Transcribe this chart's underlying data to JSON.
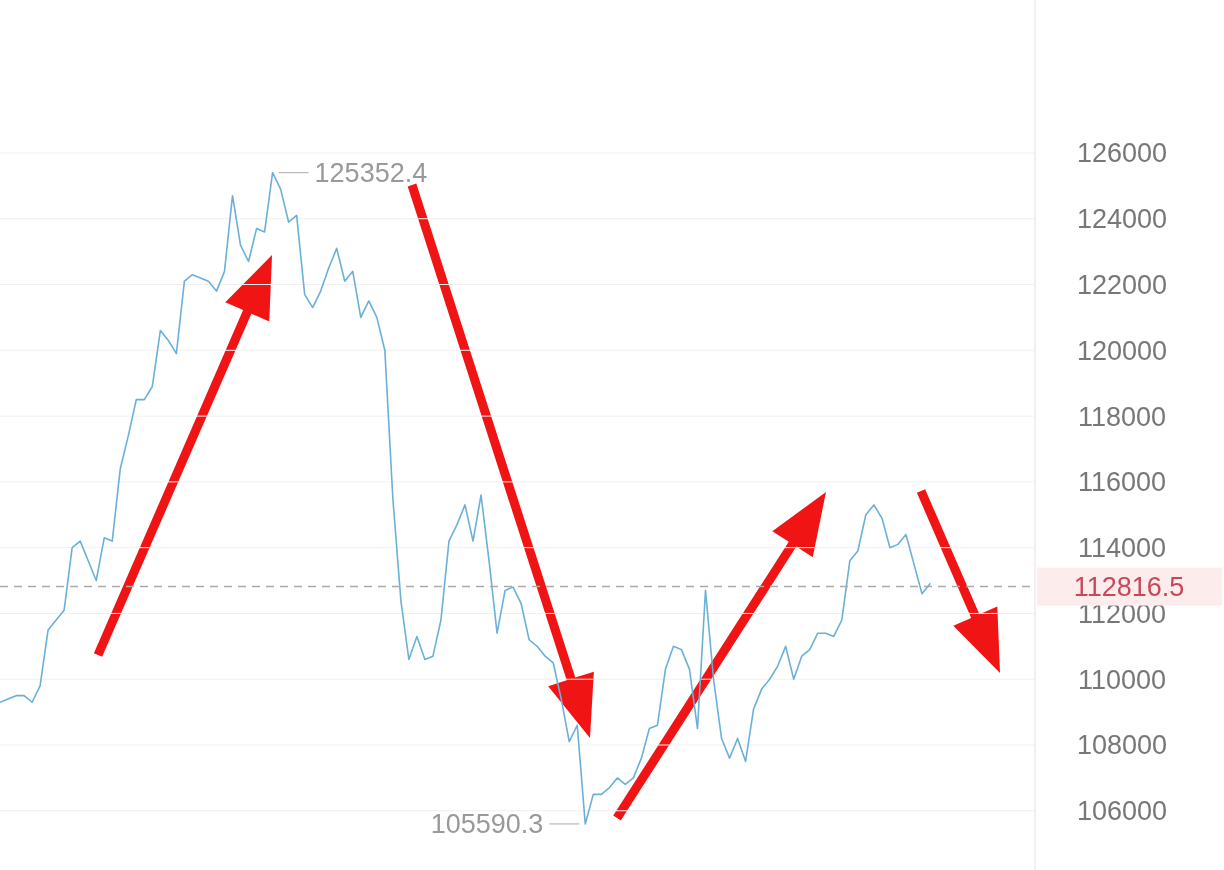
{
  "chart_data": {
    "type": "line",
    "categories": [
      null,
      null,
      null,
      null,
      null,
      null,
      null,
      null,
      null,
      null,
      null,
      null,
      null,
      null,
      null,
      null,
      null,
      null,
      null,
      null,
      null,
      null,
      null,
      null,
      null,
      null,
      null,
      null,
      null,
      null,
      null,
      null,
      null,
      null,
      null,
      null,
      null,
      null,
      null,
      null,
      null,
      null,
      null,
      null,
      null,
      null,
      null,
      null,
      null,
      null,
      null,
      null,
      null,
      null,
      null,
      null,
      null,
      null,
      null,
      null,
      null,
      null,
      null,
      null,
      null,
      null,
      null,
      null,
      null,
      null,
      null,
      null,
      null,
      null,
      null,
      null,
      null,
      null,
      null,
      null,
      null,
      null,
      null,
      null,
      null,
      null,
      null,
      null,
      null,
      null,
      null,
      null,
      null,
      null,
      null,
      null,
      null,
      null,
      null,
      null,
      null,
      null,
      null,
      null,
      null,
      null,
      null,
      null,
      null,
      null,
      null,
      null,
      null,
      null,
      null,
      null,
      null
    ],
    "series": [
      {
        "color": "#6ab0d8",
        "values": [
          109300,
          109400,
          109500,
          109500,
          109300,
          109800,
          111500,
          111800,
          112100,
          114000,
          114200,
          113600,
          113000,
          114300,
          114200,
          116400,
          117400,
          118500,
          118500,
          118900,
          120600,
          120300,
          119900,
          122100,
          122300,
          122200,
          122100,
          121800,
          122400,
          124700,
          123200,
          122700,
          123700,
          123600,
          125400,
          124900,
          123900,
          124100,
          121700,
          121300,
          121800,
          122500,
          123100,
          122100,
          122400,
          121000,
          121500,
          121000,
          120000,
          115500,
          112400,
          110600,
          111300,
          110600,
          110700,
          111800,
          114200,
          114700,
          115300,
          114200,
          115600,
          113600,
          111400,
          112700,
          112800,
          112300,
          111200,
          111000,
          110700,
          110500,
          109400,
          108100,
          108600,
          105600,
          106500,
          106500,
          106700,
          107000,
          106800,
          107000,
          107600,
          108500,
          108600,
          110300,
          111000,
          110900,
          110300,
          108500,
          112700,
          110000,
          108200,
          107600,
          108200,
          107500,
          109100,
          109700,
          110000,
          110400,
          111000,
          110000,
          110700,
          110900,
          111400,
          111400,
          111300,
          111800,
          113600,
          113900,
          115000,
          115300,
          114900,
          114000,
          114100,
          114400,
          113500,
          112600,
          112900
        ]
      }
    ],
    "ylim": [
      104200,
      130650
    ],
    "yticks": [
      106000,
      108000,
      110000,
      112000,
      114000,
      116000,
      118000,
      120000,
      122000,
      124000,
      126000
    ],
    "grid": "y",
    "marker": "none",
    "line_style": "solid",
    "ref_lines": [
      {
        "axis": "y",
        "value": 112816.5,
        "label": "112816.5",
        "color": "#aaaaaa",
        "line_style": "dashed"
      }
    ],
    "annotations": [
      "125352.4",
      "105590.3"
    ]
  }
}
